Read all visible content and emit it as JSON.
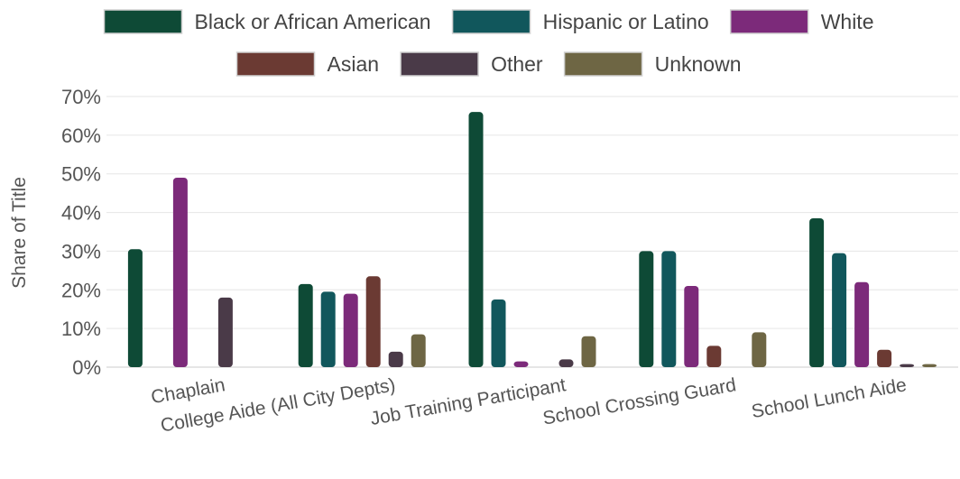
{
  "chart_data": {
    "type": "bar",
    "ylabel": "Share of Title",
    "ylim": [
      0,
      70
    ],
    "yticks": [
      0,
      10,
      20,
      30,
      40,
      50,
      60,
      70
    ],
    "ytick_labels": [
      "0%",
      "10%",
      "20%",
      "30%",
      "40%",
      "50%",
      "60%",
      "70%"
    ],
    "grid": true,
    "legend_position": "top",
    "categories": [
      "Chaplain",
      "College Aide (All City Depts)",
      "Job Training Participant",
      "School Crossing Guard",
      "School Lunch Aide"
    ],
    "series": [
      {
        "name": "Black or African American",
        "color": "#0e4a36",
        "values": [
          30.5,
          21.5,
          66,
          30,
          38.5
        ]
      },
      {
        "name": "Hispanic or Latino",
        "color": "#11575c",
        "values": [
          0,
          19.5,
          17.5,
          30,
          29.5
        ]
      },
      {
        "name": "White",
        "color": "#7c2a7a",
        "values": [
          49,
          19,
          1.5,
          21,
          22
        ]
      },
      {
        "name": "Asian",
        "color": "#6b3a33",
        "values": [
          0,
          23.5,
          0,
          5.5,
          4.5
        ]
      },
      {
        "name": "Other",
        "color": "#4a3a48",
        "values": [
          18,
          4,
          2,
          0,
          0.8
        ]
      },
      {
        "name": "Unknown",
        "color": "#6e6644",
        "values": [
          0,
          8.5,
          8,
          9,
          0.8
        ]
      }
    ]
  }
}
